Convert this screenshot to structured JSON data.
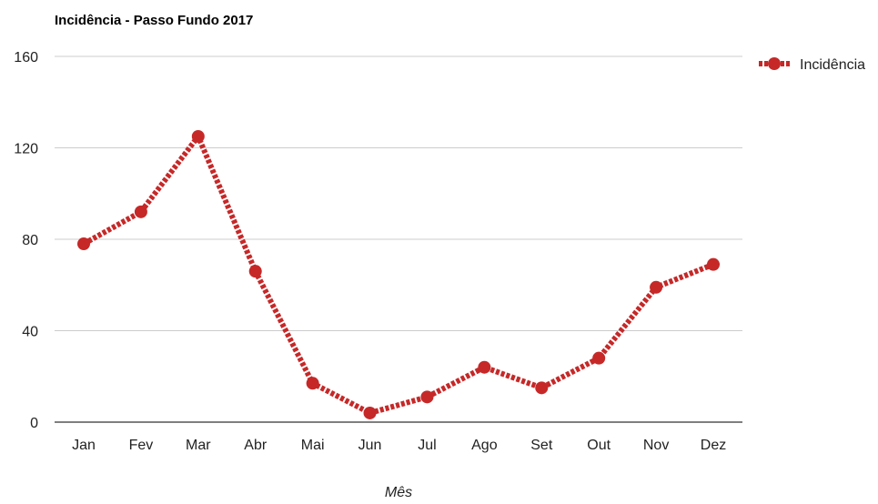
{
  "chart_data": {
    "type": "line",
    "title": "Incidência - Passo Fundo 2017",
    "xlabel": "Mês",
    "ylabel": "",
    "ylim": [
      0,
      160
    ],
    "yticks": [
      "0",
      "40",
      "80",
      "120",
      "160"
    ],
    "grid": true,
    "legend_position": "right",
    "categories": [
      "Jan",
      "Fev",
      "Mar",
      "Abr",
      "Mai",
      "Jun",
      "Jul",
      "Ago",
      "Set",
      "Out",
      "Nov",
      "Dez"
    ],
    "series": [
      {
        "name": "Incidência",
        "color": "#c62828",
        "values": [
          78,
          92,
          125,
          66,
          17,
          4,
          11,
          24,
          15,
          28,
          59,
          69
        ]
      }
    ]
  }
}
